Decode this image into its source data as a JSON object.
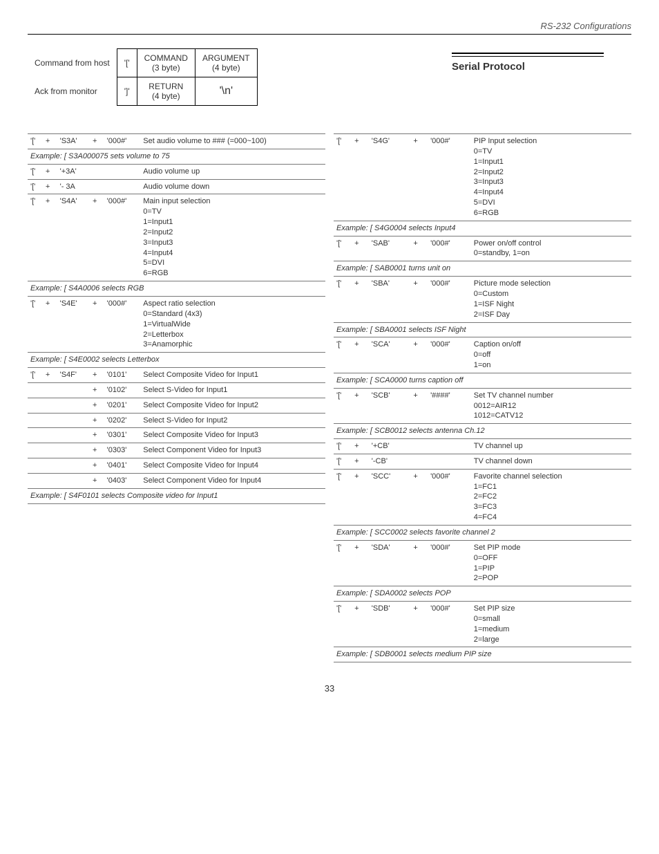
{
  "header": {
    "title": "RS-232 Configurations"
  },
  "hostTable": {
    "row1Label": "Command from host",
    "row1Open": "'['",
    "row1A": "COMMAND\n(3 byte)",
    "row1B": "ARGUMENT\n(4 byte)",
    "row2Label": "Ack from monitor",
    "row2Open": "']'",
    "row2A": "RETURN\n(4 byte)",
    "row2B": "'\\n'"
  },
  "serialTitle": "Serial Protocol",
  "left": [
    {
      "type": "cmd",
      "tokens": [
        "'['",
        "+",
        "'S3A'",
        "+",
        "'000#'"
      ],
      "desc": "Set audio volume to ### (=000~100)"
    },
    {
      "type": "example",
      "text": "Example:   [ S3A000075 sets volume to 75"
    },
    {
      "type": "cmd",
      "tokens": [
        "'['",
        "+",
        "'+3A'"
      ],
      "desc": "Audio volume up"
    },
    {
      "type": "cmd",
      "tokens": [
        "'['",
        "+",
        "'- 3A"
      ],
      "desc": "Audio volume down"
    },
    {
      "type": "cmd",
      "tokens": [
        "'['",
        "+",
        "'S4A'",
        "+",
        "'000#'"
      ],
      "desc": "Main input selection\n0=TV\n1=Input1\n2=Input2\n3=Input3\n4=Input4\n5=DVI\n6=RGB"
    },
    {
      "type": "example",
      "text": "Example:   [ S4A0006 selects RGB"
    },
    {
      "type": "cmd",
      "tokens": [
        "'['",
        "+",
        "'S4E'",
        "+",
        "'000#'"
      ],
      "desc": "Aspect ratio selection\n0=Standard (4x3)\n1=VirtualWide\n2=Letterbox\n3=Anamorphic"
    },
    {
      "type": "example",
      "text": "Example:   [ S4E0002 selects Letterbox"
    },
    {
      "type": "cmd",
      "tokens": [
        "'['",
        "+",
        "'S4F'",
        "+",
        "'0101'"
      ],
      "desc": "Select Composite Video for Input1"
    },
    {
      "type": "cmd",
      "tokens": [
        "",
        "",
        "",
        "+",
        "'0102'"
      ],
      "desc": "Select S-Video for Input1"
    },
    {
      "type": "cmd",
      "tokens": [
        "",
        "",
        "",
        "+",
        "'0201'"
      ],
      "desc": "Select Composite Video for Input2"
    },
    {
      "type": "cmd",
      "tokens": [
        "",
        "",
        "",
        "+",
        "'0202'"
      ],
      "desc": "Select S-Video for Input2"
    },
    {
      "type": "cmd",
      "tokens": [
        "",
        "",
        "",
        "+",
        "'0301'"
      ],
      "desc": "Select Composite Video for Input3"
    },
    {
      "type": "cmd",
      "tokens": [
        "",
        "",
        "",
        "+",
        "'0303'"
      ],
      "desc": "Select Component Video for Input3"
    },
    {
      "type": "cmd",
      "tokens": [
        "",
        "",
        "",
        "+",
        "'0401'"
      ],
      "desc": "Select Composite Video for Input4"
    },
    {
      "type": "cmd",
      "tokens": [
        "",
        "",
        "",
        "+",
        "'0403'"
      ],
      "desc": "Select Component Video for Input4"
    },
    {
      "type": "example",
      "text": "Example:   [ S4F0101 selects Composite video for Input1"
    }
  ],
  "right": [
    {
      "type": "cmd",
      "tokens": [
        "'['",
        "+",
        "'S4G'",
        "+",
        "'000#'"
      ],
      "desc": "PIP Input selection\n0=TV\n1=Input1\n2=Input2\n3=Input3\n4=Input4\n5=DVI\n6=RGB"
    },
    {
      "type": "example",
      "text": "Example:   [ S4G0004 selects Input4"
    },
    {
      "type": "cmd",
      "tokens": [
        "'['",
        "+",
        "'SAB'",
        "+",
        "'000#'"
      ],
      "desc": "Power on/off control\n0=standby, 1=on"
    },
    {
      "type": "example",
      "text": "Example:   [ SAB0001 turns unit on"
    },
    {
      "type": "cmd",
      "tokens": [
        "'['",
        "+",
        "'SBA'",
        "+",
        "'000#'"
      ],
      "desc": "Picture mode selection\n0=Custom\n1=ISF Night\n2=ISF Day"
    },
    {
      "type": "example",
      "text": "Example:   [ SBA0001 selects ISF Night"
    },
    {
      "type": "cmd",
      "tokens": [
        "'['",
        "+",
        "'SCA'",
        "+",
        "'000#'"
      ],
      "desc": "Caption on/off\n0=off\n1=on"
    },
    {
      "type": "example",
      "text": "Example:   [ SCA0000 turns caption off"
    },
    {
      "type": "cmd",
      "tokens": [
        "'['",
        "+",
        "'SCB'",
        "+",
        "'####'"
      ],
      "desc": "Set TV channel number\n0012=AIR12\n1012=CATV12"
    },
    {
      "type": "example",
      "text": "Example:   [ SCB0012 selects antenna Ch.12"
    },
    {
      "type": "cmd",
      "tokens": [
        "'['",
        "+",
        "'+CB'"
      ],
      "desc": "TV channel up"
    },
    {
      "type": "cmd",
      "tokens": [
        "'['",
        "+",
        "'-CB'"
      ],
      "desc": "TV channel down"
    },
    {
      "type": "cmd",
      "tokens": [
        "'['",
        "+",
        "'SCC'",
        "+",
        "'000#'"
      ],
      "desc": "Favorite channel selection\n1=FC1\n2=FC2\n3=FC3\n4=FC4"
    },
    {
      "type": "example",
      "text": "Example:   [ SCC0002 selects favorite channel 2"
    },
    {
      "type": "cmd",
      "tokens": [
        "'['",
        "+",
        "'SDA'",
        "+",
        "'000#'"
      ],
      "desc": "Set PIP mode\n0=OFF\n1=PIP\n2=POP"
    },
    {
      "type": "example",
      "text": "Example:   [ SDA0002 selects POP"
    },
    {
      "type": "cmd",
      "tokens": [
        "'['",
        "+",
        "'SDB'",
        "+",
        "'000#'"
      ],
      "desc": "Set PIP size\n0=small\n1=medium\n2=large"
    },
    {
      "type": "example",
      "text": "Example:   [ SDB0001 selects medium PIP size"
    }
  ],
  "pageNum": "33"
}
